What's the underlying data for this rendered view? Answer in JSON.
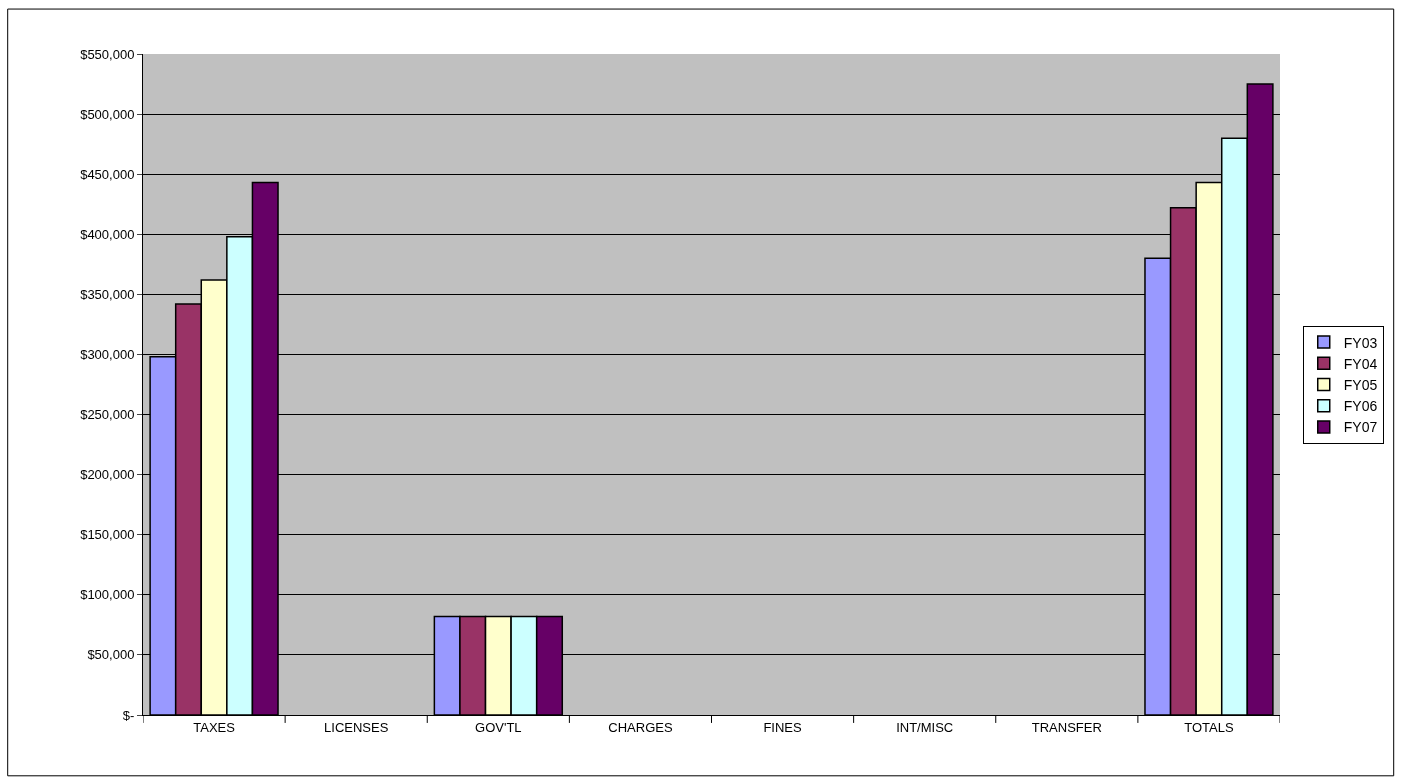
{
  "chart_data": {
    "type": "bar",
    "categories": [
      "TAXES",
      "LICENSES",
      "GOV'TL",
      "CHARGES",
      "FINES",
      "INT/MISC",
      "TRANSFER",
      "TOTALS"
    ],
    "series": [
      {
        "name": "FY03",
        "color": "#9999ff",
        "values": [
          298000,
          null,
          82000,
          null,
          null,
          null,
          null,
          380000
        ]
      },
      {
        "name": "FY04",
        "color": "#993366",
        "values": [
          342000,
          null,
          82000,
          null,
          null,
          null,
          null,
          422000
        ]
      },
      {
        "name": "FY05",
        "color": "#ffffcc",
        "values": [
          362000,
          null,
          82000,
          null,
          null,
          null,
          null,
          443000
        ]
      },
      {
        "name": "FY06",
        "color": "#ccffff",
        "values": [
          398000,
          null,
          82000,
          null,
          null,
          null,
          null,
          480000
        ]
      },
      {
        "name": "FY07",
        "color": "#660066",
        "values": [
          443000,
          null,
          82000,
          null,
          null,
          null,
          null,
          525000
        ]
      }
    ],
    "ylim": [
      0,
      550000
    ],
    "yticks": [
      {
        "value": 0,
        "label": "$-"
      },
      {
        "value": 50000,
        "label": "$50,000"
      },
      {
        "value": 100000,
        "label": "$100,000"
      },
      {
        "value": 150000,
        "label": "$150,000"
      },
      {
        "value": 200000,
        "label": "$200,000"
      },
      {
        "value": 250000,
        "label": "$250,000"
      },
      {
        "value": 300000,
        "label": "$300,000"
      },
      {
        "value": 350000,
        "label": "$350,000"
      },
      {
        "value": 400000,
        "label": "$400,000"
      },
      {
        "value": 450000,
        "label": "$450,000"
      },
      {
        "value": 500000,
        "label": "$500,000"
      },
      {
        "value": 550000,
        "label": "$550,000"
      }
    ],
    "grid": "y",
    "legend": "right"
  }
}
